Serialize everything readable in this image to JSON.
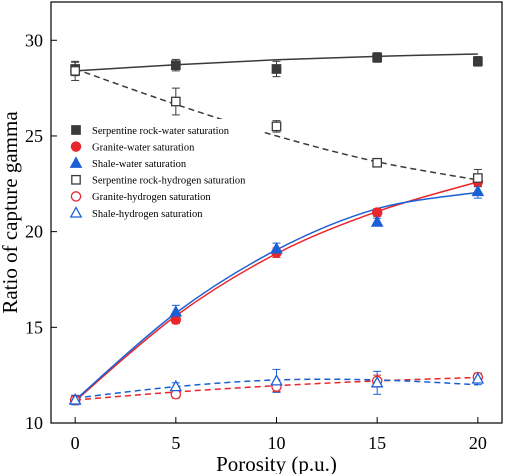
{
  "chart_data": {
    "type": "scatter",
    "xlabel": "Porosity (p.u.)",
    "ylabel": "Ratio of capture gamma",
    "xlim": [
      -1.2,
      21.2
    ],
    "ylim": [
      10,
      32
    ],
    "x_ticks": [
      0,
      5,
      10,
      15,
      20
    ],
    "y_ticks": [
      10,
      15,
      20,
      25,
      30
    ],
    "grid": false,
    "legend_position": "upper-left",
    "x": [
      0,
      5,
      10,
      15,
      20
    ],
    "series": [
      {
        "name": "Serpentine rock-water saturation",
        "marker": "square-filled",
        "color": "#3a3a3a",
        "values": [
          28.5,
          28.7,
          28.5,
          29.1,
          28.9
        ],
        "errors": [
          0.35,
          0.3,
          0.4,
          0.25,
          0.25
        ],
        "fit": {
          "style": "solid",
          "color": "#3a3a3a",
          "values": [
            28.4,
            28.72,
            28.98,
            29.16,
            29.28
          ]
        }
      },
      {
        "name": "Granite-water saturation",
        "marker": "circle-filled",
        "color": "#e8262c",
        "values": [
          11.2,
          15.4,
          18.9,
          21.0,
          22.6
        ],
        "errors": [
          0.2,
          0.2,
          0.25,
          0.2,
          0.2
        ],
        "fit": {
          "style": "solid",
          "color": "#e8262c",
          "values": [
            11.15,
            15.6,
            18.85,
            21.05,
            22.6
          ]
        }
      },
      {
        "name": "Shale-water saturation",
        "marker": "triangle-filled",
        "color": "#1a5fd6",
        "values": [
          11.2,
          15.8,
          19.1,
          20.5,
          22.1
        ],
        "errors": [
          0.25,
          0.35,
          0.3,
          0.2,
          0.35
        ],
        "fit": {
          "style": "solid",
          "color": "#1a5fd6",
          "values": [
            11.2,
            15.75,
            19.05,
            21.2,
            22.05
          ]
        }
      },
      {
        "name": "Serpentine rock-hydrogen saturation",
        "marker": "square-open",
        "color": "#3a3a3a",
        "values": [
          28.4,
          26.8,
          25.5,
          23.6,
          22.8
        ],
        "errors": [
          0.5,
          0.7,
          0.3,
          0.2,
          0.45
        ],
        "fit": {
          "style": "dashed",
          "color": "#3a3a3a",
          "values": [
            28.5,
            26.65,
            25.0,
            23.65,
            22.7
          ]
        }
      },
      {
        "name": "Granite-hydrogen saturation",
        "marker": "circle-open",
        "color": "#e8262c",
        "values": [
          11.2,
          11.5,
          11.9,
          12.2,
          12.4
        ],
        "errors": [
          0.2,
          0.2,
          0.25,
          0.3,
          0.2
        ],
        "fit": {
          "style": "dashed",
          "color": "#e8262c",
          "values": [
            11.2,
            11.62,
            11.95,
            12.2,
            12.38
          ]
        }
      },
      {
        "name": "Shale-hydrogen saturation",
        "marker": "triangle-open",
        "color": "#1a5fd6",
        "values": [
          11.2,
          11.9,
          12.2,
          12.1,
          12.3
        ],
        "errors": [
          0.2,
          0.2,
          0.6,
          0.6,
          0.3
        ],
        "fit": {
          "style": "dashed",
          "color": "#1a5fd6",
          "values": [
            11.3,
            11.9,
            12.25,
            12.25,
            12.0
          ]
        }
      }
    ]
  }
}
